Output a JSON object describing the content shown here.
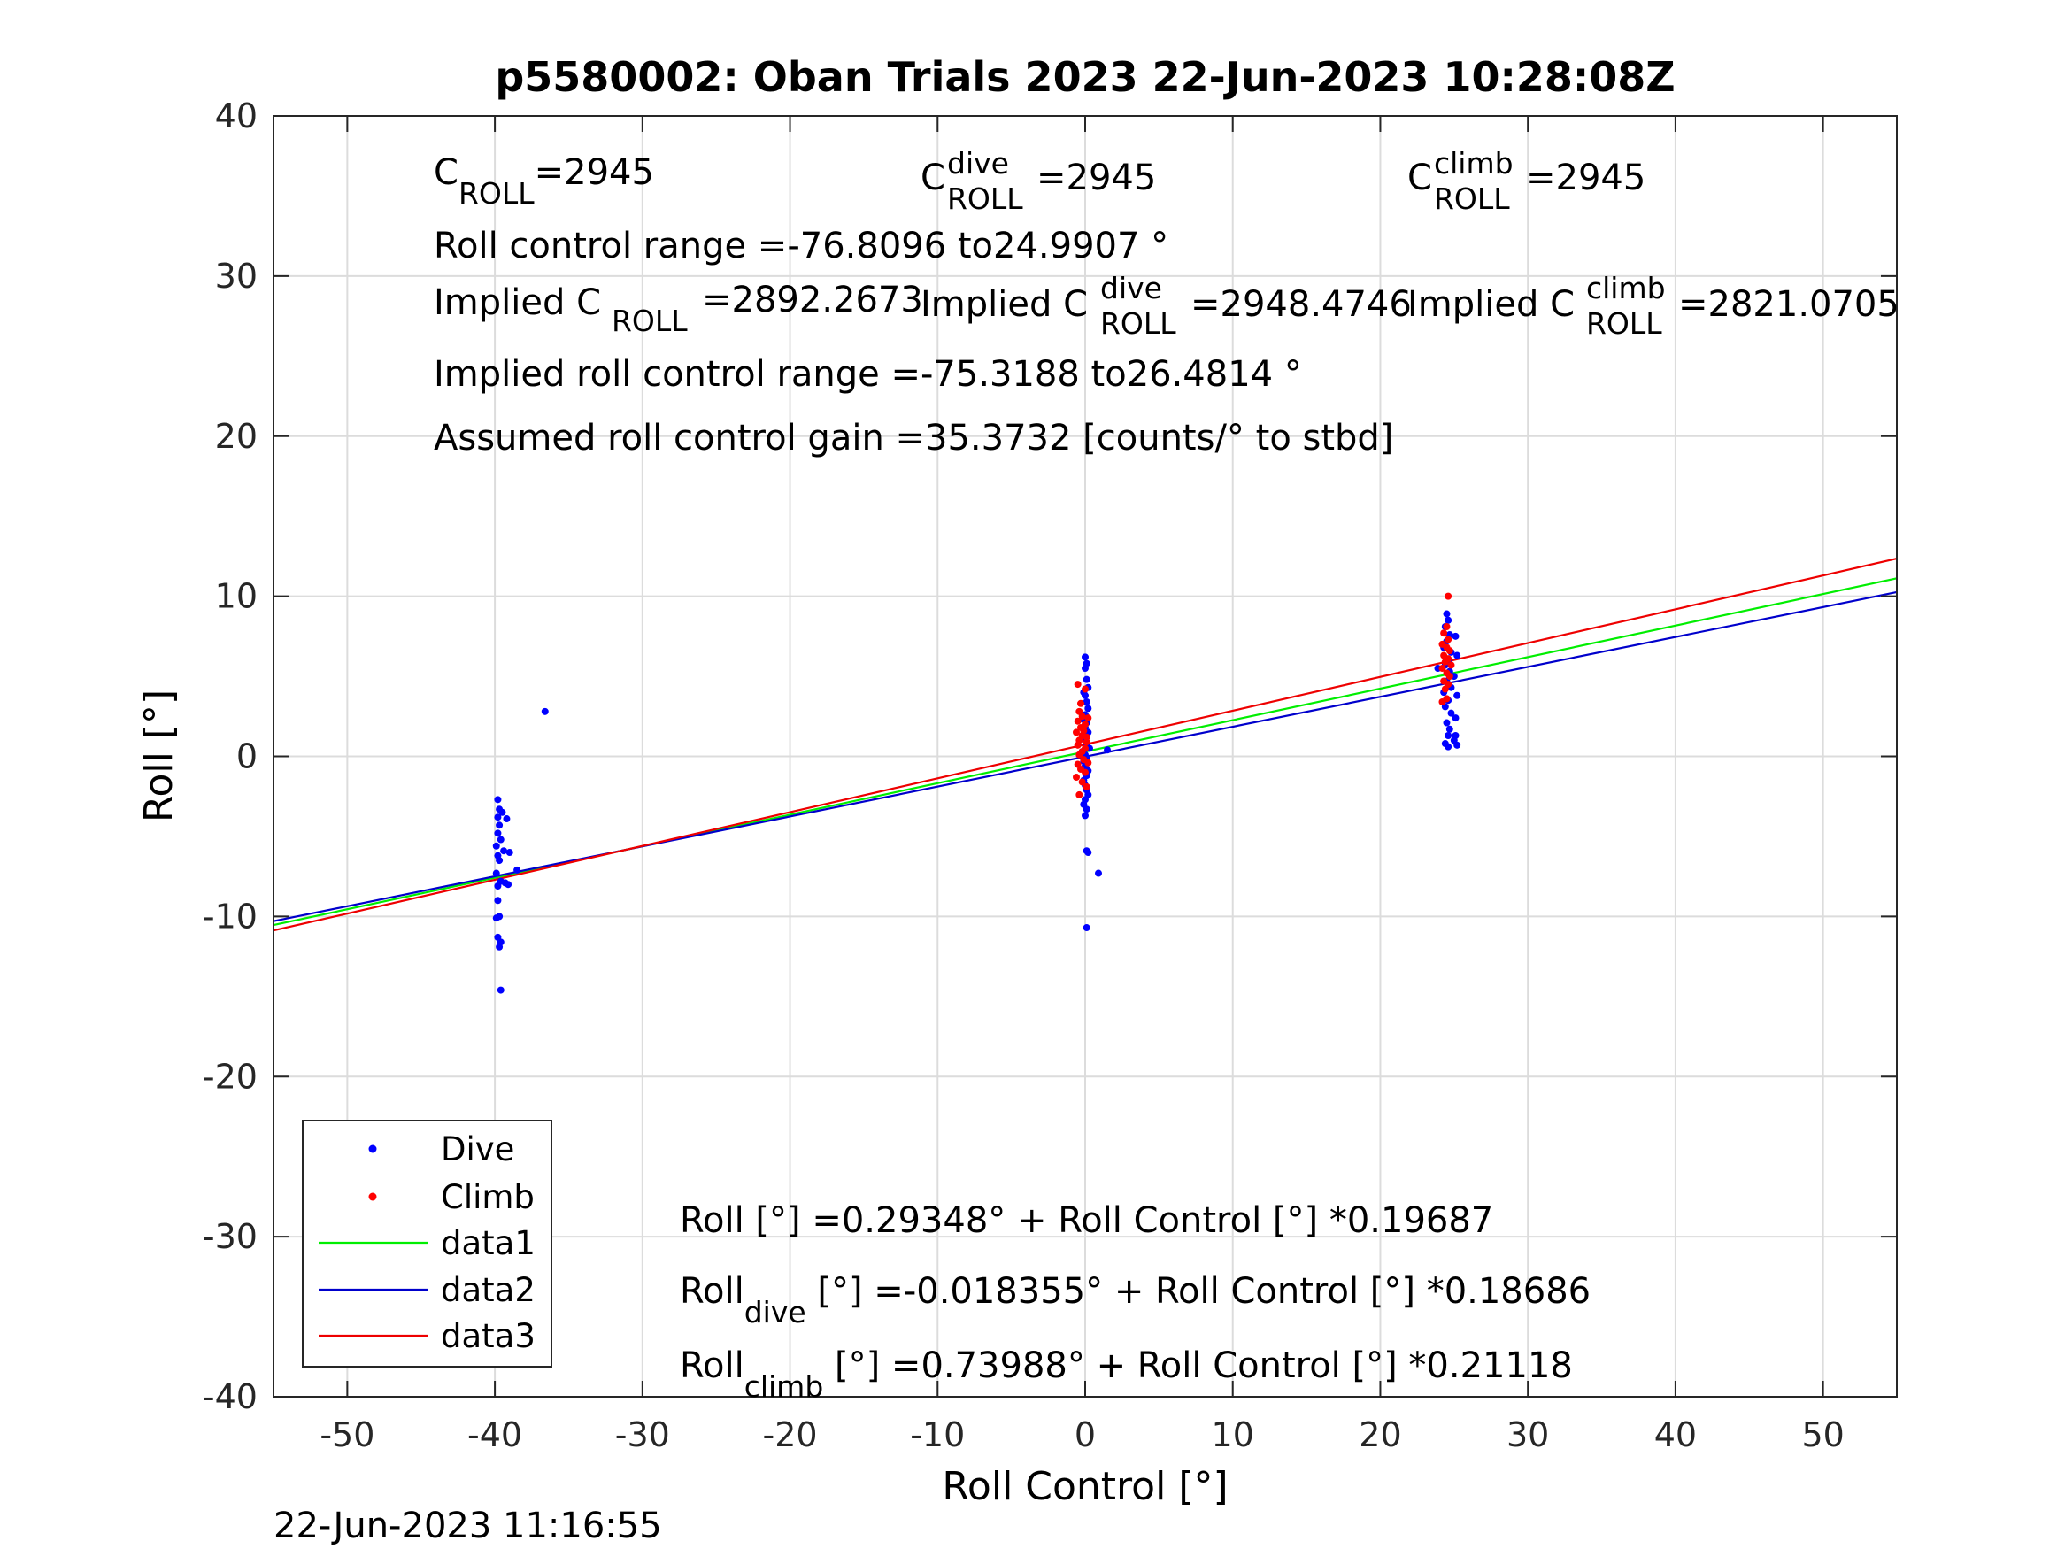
{
  "chart_data": {
    "type": "scatter",
    "title": "p5580002: Oban Trials 2023 22-Jun-2023 10:28:08Z",
    "xlabel": "Roll Control [°]",
    "ylabel": "Roll [°]",
    "xlim": [
      -55,
      55
    ],
    "ylim": [
      -40,
      40
    ],
    "xticks": [
      -50,
      -40,
      -30,
      -20,
      -10,
      0,
      10,
      20,
      30,
      40,
      50
    ],
    "yticks": [
      -40,
      -30,
      -20,
      -10,
      0,
      10,
      20,
      30,
      40
    ],
    "grid": true,
    "legend_position": "bottom-left",
    "timestamp": "22-Jun-2023 11:16:55",
    "series": [
      {
        "name": "Dive",
        "kind": "points",
        "color": "#0000ff",
        "points": [
          [
            -39.8,
            -2.7
          ],
          [
            -39.7,
            -3.3
          ],
          [
            -39.8,
            -3.8
          ],
          [
            -39.5,
            -3.5
          ],
          [
            -39.2,
            -3.9
          ],
          [
            -39.7,
            -4.3
          ],
          [
            -39.8,
            -4.8
          ],
          [
            -39.6,
            -5.2
          ],
          [
            -39.9,
            -5.6
          ],
          [
            -39.4,
            -5.9
          ],
          [
            -39.0,
            -6.0
          ],
          [
            -39.8,
            -6.2
          ],
          [
            -39.7,
            -6.5
          ],
          [
            -38.5,
            -7.1
          ],
          [
            -39.9,
            -7.3
          ],
          [
            -39.6,
            -7.8
          ],
          [
            -39.3,
            -7.9
          ],
          [
            -39.8,
            -8.1
          ],
          [
            -39.1,
            -8.0
          ],
          [
            -39.8,
            -9.0
          ],
          [
            -39.7,
            -10.0
          ],
          [
            -39.9,
            -10.1
          ],
          [
            -39.8,
            -11.3
          ],
          [
            -39.6,
            -11.6
          ],
          [
            -39.7,
            -11.9
          ],
          [
            -39.6,
            -14.6
          ],
          [
            -36.6,
            2.8
          ],
          [
            0.0,
            6.2
          ],
          [
            0.1,
            5.8
          ],
          [
            0.0,
            5.5
          ],
          [
            0.1,
            4.8
          ],
          [
            0.2,
            4.3
          ],
          [
            -0.1,
            4.0
          ],
          [
            0.0,
            3.8
          ],
          [
            0.1,
            3.4
          ],
          [
            0.2,
            3.0
          ],
          [
            0.0,
            2.6
          ],
          [
            -0.1,
            2.3
          ],
          [
            0.1,
            2.1
          ],
          [
            0.0,
            1.8
          ],
          [
            0.2,
            1.5
          ],
          [
            -0.1,
            1.2
          ],
          [
            0.0,
            1.0
          ],
          [
            0.1,
            0.8
          ],
          [
            0.3,
            0.5
          ],
          [
            -0.2,
            0.3
          ],
          [
            1.5,
            0.4
          ],
          [
            0.0,
            0.1
          ],
          [
            0.1,
            -0.1
          ],
          [
            -0.1,
            -0.3
          ],
          [
            0.0,
            -0.6
          ],
          [
            0.2,
            -0.9
          ],
          [
            0.1,
            -1.2
          ],
          [
            -0.1,
            -1.5
          ],
          [
            0.0,
            -1.8
          ],
          [
            0.1,
            -2.1
          ],
          [
            0.2,
            -2.4
          ],
          [
            0.0,
            -2.7
          ],
          [
            -0.1,
            -3.0
          ],
          [
            0.1,
            -3.3
          ],
          [
            0.0,
            -3.7
          ],
          [
            0.1,
            -5.9
          ],
          [
            0.2,
            -6.0
          ],
          [
            0.9,
            -7.3
          ],
          [
            0.1,
            -10.7
          ],
          [
            24.5,
            8.9
          ],
          [
            24.6,
            8.5
          ],
          [
            24.4,
            8.1
          ],
          [
            24.7,
            7.6
          ],
          [
            25.1,
            7.5
          ],
          [
            24.5,
            7.2
          ],
          [
            24.3,
            6.8
          ],
          [
            24.8,
            6.5
          ],
          [
            25.2,
            6.3
          ],
          [
            24.6,
            6.0
          ],
          [
            24.4,
            5.7
          ],
          [
            23.9,
            5.5
          ],
          [
            24.7,
            5.3
          ],
          [
            25.0,
            5.0
          ],
          [
            24.5,
            4.7
          ],
          [
            24.8,
            4.3
          ],
          [
            24.3,
            4.0
          ],
          [
            25.2,
            3.8
          ],
          [
            24.6,
            3.5
          ],
          [
            24.4,
            3.1
          ],
          [
            24.8,
            2.7
          ],
          [
            25.1,
            2.4
          ],
          [
            24.5,
            2.1
          ],
          [
            24.7,
            1.7
          ],
          [
            24.6,
            1.3
          ],
          [
            25.0,
            1.0
          ],
          [
            24.4,
            0.8
          ],
          [
            24.6,
            0.6
          ],
          [
            25.2,
            0.7
          ],
          [
            25.1,
            1.3
          ]
        ]
      },
      {
        "name": "Climb",
        "kind": "points",
        "color": "#ff0000",
        "points": [
          [
            -0.5,
            4.5
          ],
          [
            -0.3,
            3.3
          ],
          [
            0.0,
            4.2
          ],
          [
            -0.4,
            2.8
          ],
          [
            -0.2,
            2.5
          ],
          [
            -0.5,
            2.2
          ],
          [
            0.0,
            2.0
          ],
          [
            -0.3,
            1.8
          ],
          [
            -0.6,
            1.5
          ],
          [
            -0.2,
            1.3
          ],
          [
            0.1,
            1.2
          ],
          [
            -0.4,
            1.0
          ],
          [
            -0.5,
            0.7
          ],
          [
            0.0,
            0.5
          ],
          [
            -0.2,
            0.3
          ],
          [
            -0.4,
            0.1
          ],
          [
            -0.1,
            -0.2
          ],
          [
            -0.5,
            -0.5
          ],
          [
            -0.3,
            -0.8
          ],
          [
            0.0,
            -1.0
          ],
          [
            -0.6,
            -1.3
          ],
          [
            -0.2,
            -1.6
          ],
          [
            0.1,
            -1.9
          ],
          [
            -0.4,
            -2.4
          ],
          [
            0.2,
            -0.4
          ],
          [
            0.1,
            0.9
          ],
          [
            -0.1,
            1.6
          ],
          [
            0.2,
            2.4
          ],
          [
            24.6,
            10.0
          ],
          [
            24.5,
            8.1
          ],
          [
            24.3,
            7.7
          ],
          [
            24.6,
            7.3
          ],
          [
            24.2,
            7.0
          ],
          [
            24.5,
            6.8
          ],
          [
            24.7,
            6.6
          ],
          [
            24.3,
            6.3
          ],
          [
            24.6,
            6.1
          ],
          [
            24.4,
            5.9
          ],
          [
            24.8,
            5.7
          ],
          [
            24.2,
            5.5
          ],
          [
            24.5,
            5.2
          ],
          [
            24.7,
            5.0
          ],
          [
            24.3,
            4.7
          ],
          [
            24.6,
            4.5
          ],
          [
            24.4,
            4.2
          ],
          [
            24.5,
            3.6
          ],
          [
            24.2,
            3.4
          ]
        ]
      },
      {
        "name": "data1",
        "kind": "line",
        "color": "#00ee00",
        "intercept": 0.29348,
        "slope": 0.19687
      },
      {
        "name": "data2",
        "kind": "line",
        "color": "#0000cc",
        "intercept": -0.018355,
        "slope": 0.18686
      },
      {
        "name": "data3",
        "kind": "line",
        "color": "#ee0000",
        "intercept": 0.73988,
        "slope": 0.21118
      }
    ]
  },
  "annotations": {
    "c_base": "C",
    "c_sub": "ROLL",
    "c_val": "=2945",
    "c_dive_sup": "dive",
    "c_dive_val": "=2945",
    "c_climb_sup": "climb",
    "c_climb_val": "=2945",
    "range": "Roll control range =-76.8096 to24.9907 °",
    "implied_prefix": "Implied C",
    "implied_val": "=2892.2673",
    "implied_dive_val": "=2948.4746",
    "implied_climb_val": "=2821.0705",
    "implied_range": "Implied roll control range =-75.3188 to26.4814 °",
    "gain": "Assumed roll control gain =35.3732 [counts/° to stbd]",
    "eq_all": "Roll [°] =0.29348° + Roll Control [°] *0.19687",
    "eq_roll": "Roll",
    "eq_dive_sub": "dive",
    "eq_dive_rest": " [°] =-0.018355° + Roll Control [°] *0.18686",
    "eq_climb_sub": "climb",
    "eq_climb_rest": " [°] =0.73988° + Roll Control [°] *0.21118"
  }
}
